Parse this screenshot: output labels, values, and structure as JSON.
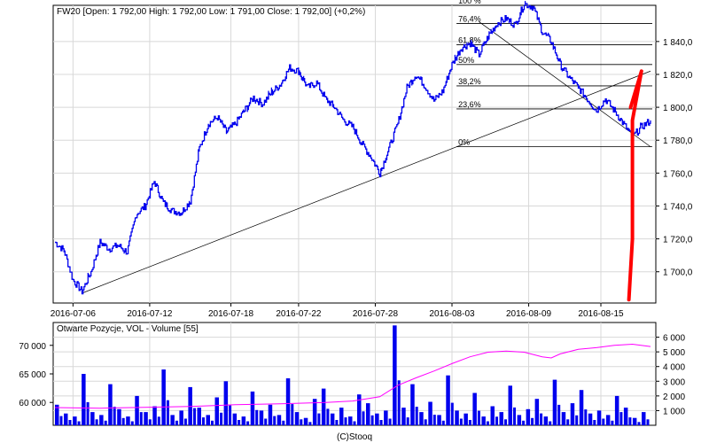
{
  "chart_data": [
    {
      "type": "line",
      "title": "FW20 [Open: 1 792,00 High: 1 792,00 Low: 1 791,00 Close: 1 792,00] (+0,2%)",
      "x_tick_labels": [
        "2016-07-06",
        "2016-07-12",
        "2016-07-18",
        "2016-07-22",
        "2016-07-28",
        "2016-08-03",
        "2016-08-09",
        "2016-08-15"
      ],
      "y_tick_labels": [
        "1 700,0",
        "1 720,0",
        "1 740,0",
        "1 760,0",
        "1 780,0",
        "1 800,0",
        "1 820,0",
        "1 840,0"
      ],
      "ylim": [
        1681,
        1862
      ],
      "grid": true,
      "series": [
        {
          "color": "#0000ee",
          "points": [
            [
              0,
              1718
            ],
            [
              1,
              1713
            ],
            [
              2,
              1695
            ],
            [
              3,
              1688
            ],
            [
              4,
              1700
            ],
            [
              5,
              1718
            ],
            [
              6,
              1714
            ],
            [
              7,
              1716
            ],
            [
              8,
              1712
            ],
            [
              9,
              1735
            ],
            [
              10,
              1740
            ],
            [
              11,
              1755
            ],
            [
              12,
              1742
            ],
            [
              13,
              1737
            ],
            [
              14,
              1736
            ],
            [
              15,
              1743
            ],
            [
              16,
              1775
            ],
            [
              17,
              1790
            ],
            [
              18,
              1794
            ],
            [
              19,
              1785
            ],
            [
              20,
              1790
            ],
            [
              21,
              1798
            ],
            [
              22,
              1806
            ],
            [
              23,
              1802
            ],
            [
              24,
              1809
            ],
            [
              25,
              1814
            ],
            [
              26,
              1824
            ],
            [
              27,
              1822
            ],
            [
              28,
              1812
            ],
            [
              29,
              1815
            ],
            [
              30,
              1805
            ],
            [
              31,
              1800
            ],
            [
              32,
              1792
            ],
            [
              33,
              1788
            ],
            [
              34,
              1778
            ],
            [
              35,
              1770
            ],
            [
              36,
              1760
            ],
            [
              37,
              1775
            ],
            [
              38,
              1790
            ],
            [
              39,
              1812
            ],
            [
              40,
              1820
            ],
            [
              41,
              1813
            ],
            [
              42,
              1804
            ],
            [
              43,
              1810
            ],
            [
              44,
              1826
            ],
            [
              45,
              1836
            ],
            [
              46,
              1839
            ],
            [
              47,
              1832
            ],
            [
              48,
              1843
            ],
            [
              49,
              1851
            ],
            [
              50,
              1854
            ],
            [
              51,
              1850
            ],
            [
              52,
              1863
            ],
            [
              53,
              1861
            ],
            [
              54,
              1846
            ],
            [
              55,
              1840
            ],
            [
              56,
              1826
            ],
            [
              57,
              1818
            ],
            [
              58,
              1812
            ],
            [
              59,
              1805
            ],
            [
              60,
              1798
            ],
            [
              61,
              1805
            ],
            [
              62,
              1798
            ],
            [
              63,
              1790
            ],
            [
              64,
              1782
            ],
            [
              65,
              1788
            ],
            [
              66,
              1792
            ]
          ]
        }
      ],
      "fibonacci": {
        "color": "#000000",
        "levels": [
          {
            "label": "100 %",
            "value": 1862
          },
          {
            "label": "76,4%",
            "value": 1851
          },
          {
            "label": "61,8%",
            "value": 1838
          },
          {
            "label": "50%",
            "value": 1826
          },
          {
            "label": "38,2%",
            "value": 1813
          },
          {
            "label": "23,6%",
            "value": 1799
          },
          {
            "label": "0%",
            "value": 1776
          }
        ]
      },
      "trendlines": [
        {
          "color": "#000000",
          "from": [
            3,
            1687
          ],
          "to": [
            66,
            1822
          ]
        },
        {
          "color": "#000000",
          "from": [
            47,
            1852
          ],
          "to": [
            66,
            1776
          ]
        }
      ],
      "annotation": {
        "color": "#ff0000",
        "points": [
          [
            63.6,
            1683
          ],
          [
            64.0,
            1720
          ],
          [
            64.0,
            1792
          ],
          [
            65.0,
            1822
          ],
          [
            63.8,
            1800
          ]
        ]
      }
    },
    {
      "type": "line",
      "title": "Otwarte Pozycje, VOL - Volume [55]",
      "left_axis_labels": [
        "60 000",
        "65 000",
        "70 000"
      ],
      "right_axis_labels": [
        "1 000",
        "2 000",
        "3 000",
        "4 000",
        "5 000",
        "6 000"
      ],
      "left_ylim": [
        56000,
        74000
      ],
      "right_ylim": [
        0,
        7000
      ],
      "grid": true,
      "open_interest": {
        "color": "#ff00ff",
        "points": [
          [
            0,
            59100
          ],
          [
            5,
            59000
          ],
          [
            10,
            59150
          ],
          [
            15,
            59300
          ],
          [
            20,
            59600
          ],
          [
            25,
            59750
          ],
          [
            30,
            60000
          ],
          [
            33,
            60250
          ],
          [
            36,
            61000
          ],
          [
            38,
            63000
          ],
          [
            40,
            64300
          ],
          [
            42,
            65500
          ],
          [
            44,
            66800
          ],
          [
            46,
            68000
          ],
          [
            48,
            68800
          ],
          [
            50,
            69000
          ],
          [
            52,
            68800
          ],
          [
            54,
            68000
          ],
          [
            55,
            67800
          ],
          [
            56,
            68500
          ],
          [
            58,
            69300
          ],
          [
            60,
            69600
          ],
          [
            62,
            70000
          ],
          [
            64,
            70200
          ],
          [
            66,
            69800
          ]
        ]
      },
      "volume": {
        "color": "#0000ee",
        "values": [
          1400,
          800,
          600,
          3500,
          900,
          700,
          2800,
          1100,
          600,
          2000,
          900,
          1300,
          3800,
          700,
          1000,
          2600,
          1200,
          700,
          1900,
          3000,
          800,
          600,
          2300,
          1000,
          1400,
          700,
          3200,
          900,
          500,
          1800,
          2500,
          800,
          1200,
          600,
          2100,
          1500,
          800,
          1000,
          6800,
          1200,
          2800,
          900,
          1600,
          700,
          3400,
          1000,
          800,
          2200,
          600,
          1300,
          900,
          2700,
          700,
          1100,
          1800,
          600,
          3100,
          900,
          1500,
          2400,
          800,
          1000,
          700,
          2000,
          1200,
          500,
          900
        ]
      },
      "footer": "(C)Stooq"
    }
  ]
}
